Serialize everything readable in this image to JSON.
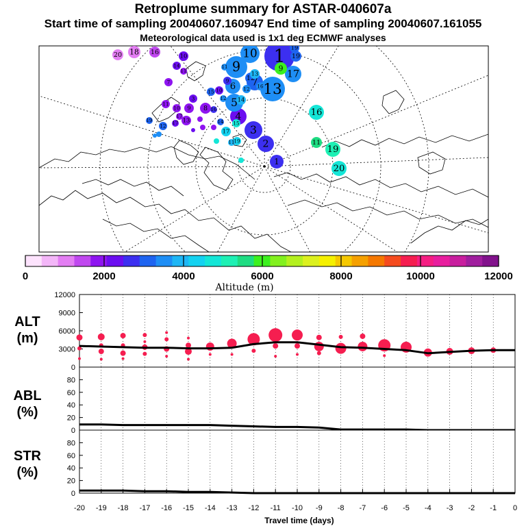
{
  "titles": {
    "main": "Retroplume summary for ASTAR-040607a",
    "times": "Start time of sampling 20040607.160947     End time of sampling 20040607.161055",
    "met": "Meteorological data used is 1x1 deg ECMWF analyses"
  },
  "colorbar": {
    "label": "Altitude (m)",
    "ticks": [
      "0",
      "2000",
      "4000",
      "6000",
      "8000",
      "10000",
      "12000"
    ],
    "colors": [
      "#fde3fd",
      "#f3b6f8",
      "#e37ef3",
      "#c048ef",
      "#8e14f0",
      "#6b0ef0",
      "#3c2ff0",
      "#1e64f0",
      "#1e8ef5",
      "#1eb6f5",
      "#14d2f0",
      "#14e6d7",
      "#1ef0b4",
      "#1edc82",
      "#3cf01e",
      "#82f01e",
      "#b4f01e",
      "#dcf01e",
      "#f5f000",
      "#f5c800",
      "#f5a000",
      "#f57800",
      "#f54b1e",
      "#f51e50",
      "#f51e82",
      "#e81e9e",
      "#c81e9e",
      "#a01e9e",
      "#82128c"
    ]
  },
  "map": {
    "plume_labels": [
      "1",
      "2",
      "3",
      "4",
      "5",
      "6",
      "7",
      "8",
      "9",
      "10",
      "11",
      "12",
      "13",
      "14",
      "15",
      "16",
      "17",
      "18",
      "19",
      "20"
    ]
  },
  "chart_data": [
    {
      "type": "line",
      "panel": "ALT",
      "ylabel": "ALT (m)",
      "ylim": [
        0,
        12000
      ],
      "yticks": [
        "0",
        "3000",
        "6000",
        "9000",
        "12000"
      ],
      "x": [
        -20,
        -19,
        -18,
        -17,
        -16,
        -15,
        -14,
        -13,
        -12,
        -11,
        -10,
        -9,
        -8,
        -7,
        -6,
        -5,
        -4,
        -3,
        -2,
        -1,
        0
      ],
      "mean": [
        3500,
        3400,
        3300,
        3200,
        3200,
        3100,
        3100,
        3200,
        3800,
        4100,
        4100,
        3700,
        3300,
        3200,
        3000,
        2800,
        2300,
        2500,
        2700,
        2800,
        2800
      ],
      "clusters": [
        {
          "x": -20,
          "y": 4900,
          "r": 4.5
        },
        {
          "x": -20,
          "y": 3100,
          "r": 3
        },
        {
          "x": -20,
          "y": 1400,
          "r": 2
        },
        {
          "x": -19,
          "y": 5000,
          "r": 5
        },
        {
          "x": -19,
          "y": 3600,
          "r": 3
        },
        {
          "x": -19,
          "y": 2600,
          "r": 4
        },
        {
          "x": -19,
          "y": 1300,
          "r": 2
        },
        {
          "x": -18,
          "y": 5200,
          "r": 4
        },
        {
          "x": -18,
          "y": 3600,
          "r": 3
        },
        {
          "x": -18,
          "y": 2300,
          "r": 4
        },
        {
          "x": -18,
          "y": 1400,
          "r": 2
        },
        {
          "x": -17,
          "y": 5300,
          "r": 3
        },
        {
          "x": -17,
          "y": 4200,
          "r": 2
        },
        {
          "x": -17,
          "y": 3300,
          "r": 4
        },
        {
          "x": -17,
          "y": 2200,
          "r": 3
        },
        {
          "x": -16,
          "y": 5700,
          "r": 2
        },
        {
          "x": -16,
          "y": 4600,
          "r": 3
        },
        {
          "x": -16,
          "y": 3000,
          "r": 4
        },
        {
          "x": -16,
          "y": 1800,
          "r": 2
        },
        {
          "x": -15,
          "y": 4800,
          "r": 2
        },
        {
          "x": -15,
          "y": 3600,
          "r": 4
        },
        {
          "x": -15,
          "y": 2600,
          "r": 5
        },
        {
          "x": -15,
          "y": 1300,
          "r": 2
        },
        {
          "x": -14,
          "y": 3400,
          "r": 6
        },
        {
          "x": -14,
          "y": 2100,
          "r": 2
        },
        {
          "x": -13,
          "y": 3900,
          "r": 7
        },
        {
          "x": -13,
          "y": 2100,
          "r": 2
        },
        {
          "x": -12,
          "y": 4600,
          "r": 9
        },
        {
          "x": -12,
          "y": 2700,
          "r": 3
        },
        {
          "x": -11,
          "y": 5300,
          "r": 10
        },
        {
          "x": -11,
          "y": 3500,
          "r": 4
        },
        {
          "x": -11,
          "y": 1800,
          "r": 2
        },
        {
          "x": -10,
          "y": 5300,
          "r": 8
        },
        {
          "x": -10,
          "y": 3500,
          "r": 4
        },
        {
          "x": -10,
          "y": 2100,
          "r": 2
        },
        {
          "x": -9,
          "y": 4900,
          "r": 4
        },
        {
          "x": -9,
          "y": 3400,
          "r": 7
        },
        {
          "x": -9,
          "y": 2300,
          "r": 3
        },
        {
          "x": -8,
          "y": 5000,
          "r": 3
        },
        {
          "x": -8,
          "y": 3100,
          "r": 8
        },
        {
          "x": -7,
          "y": 5100,
          "r": 4
        },
        {
          "x": -7,
          "y": 3400,
          "r": 7
        },
        {
          "x": -6,
          "y": 3600,
          "r": 9
        },
        {
          "x": -6,
          "y": 1900,
          "r": 2
        },
        {
          "x": -5,
          "y": 3300,
          "r": 8
        },
        {
          "x": -4,
          "y": 2400,
          "r": 6
        },
        {
          "x": -3,
          "y": 2600,
          "r": 5
        },
        {
          "x": -2,
          "y": 2700,
          "r": 5
        },
        {
          "x": -1,
          "y": 2800,
          "r": 4
        }
      ]
    },
    {
      "type": "line",
      "panel": "ABL",
      "ylabel": "ABL (%)",
      "ylim": [
        0,
        100
      ],
      "yticks": [
        "0",
        "20",
        "40",
        "60",
        "80"
      ],
      "x": [
        -20,
        -19,
        -18,
        -17,
        -16,
        -15,
        -14,
        -13,
        -12,
        -11,
        -10,
        -9,
        -8,
        -7,
        -6,
        -5,
        -4,
        -3,
        -2,
        -1,
        0
      ],
      "values": [
        9,
        9,
        8,
        8,
        8,
        8,
        8,
        7,
        6,
        5,
        5,
        4,
        1,
        1,
        1,
        1,
        0,
        0,
        0,
        0,
        0
      ]
    },
    {
      "type": "line",
      "panel": "STR",
      "ylabel": "STR (%)",
      "ylim": [
        0,
        100
      ],
      "yticks": [
        "0",
        "20",
        "40",
        "60",
        "80"
      ],
      "xlabel": "Travel time (days)",
      "xticks": [
        "-20",
        "-19",
        "-18",
        "-17",
        "-16",
        "-15",
        "-14",
        "-13",
        "-12",
        "-11",
        "-10",
        "-9",
        "-8",
        "-7",
        "-6",
        "-5",
        "-4",
        "-3",
        "-2",
        "-1",
        "0"
      ],
      "x": [
        -20,
        -19,
        -18,
        -17,
        -16,
        -15,
        -14,
        -13,
        -12,
        -11,
        -10,
        -9,
        -8,
        -7,
        -6,
        -5,
        -4,
        -3,
        -2,
        -1,
        0
      ],
      "values": [
        4,
        4,
        4,
        3,
        3,
        2,
        2,
        1,
        0,
        0,
        0,
        0,
        0,
        0,
        0,
        0,
        0,
        0,
        0,
        0,
        0
      ]
    }
  ]
}
